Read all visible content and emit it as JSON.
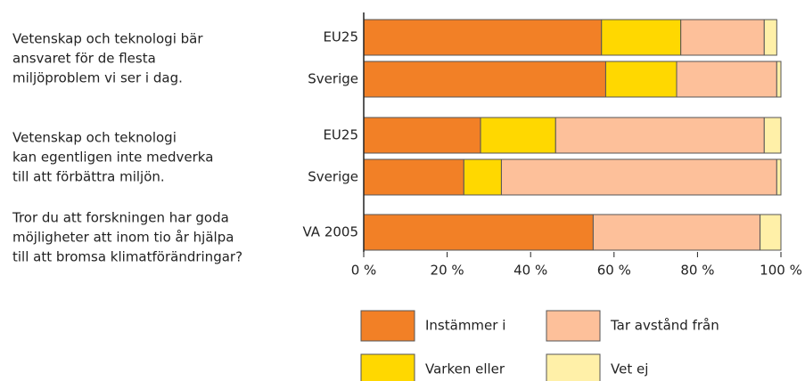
{
  "chart_data": {
    "type": "stacked-barh",
    "questions": [
      {
        "lines": [
          "Vetenskap och teknologi bär",
          "ansvaret för de flesta",
          "miljöproblem vi ser i dag."
        ]
      },
      {
        "lines": [
          "Vetenskap och teknologi",
          "kan egentligen inte medverka",
          "till att förbättra miljön."
        ]
      },
      {
        "lines": [
          "Tror du att forskningen har goda",
          "möjligheter att inom tio år hjälpa",
          "till att bromsa klimatförändringar?"
        ]
      }
    ],
    "categories": [
      "EU25",
      "Sverige",
      "EU25",
      "Sverige",
      "VA 2005"
    ],
    "series": [
      {
        "name": "Instämmer i",
        "color": "#f28026",
        "values": [
          57,
          58,
          28,
          24,
          55
        ]
      },
      {
        "name": "Varken eller",
        "color": "#ffd800",
        "values": [
          19,
          17,
          18,
          9,
          0
        ]
      },
      {
        "name": "Tar avstånd från",
        "color": "#fdc09a",
        "values": [
          20,
          24,
          50,
          66,
          40
        ]
      },
      {
        "name": "Vet ej",
        "color": "#fff0a8",
        "values": [
          3,
          1,
          4,
          1,
          5
        ]
      }
    ],
    "xlim": [
      0,
      100
    ],
    "xticks": [
      {
        "value": 0,
        "label": "0 %"
      },
      {
        "value": 20,
        "label": "20 %"
      },
      {
        "value": 40,
        "label": "40 %"
      },
      {
        "value": 60,
        "label": "60 %"
      },
      {
        "value": 80,
        "label": "80 %"
      },
      {
        "value": 100,
        "label": "100 %"
      }
    ]
  }
}
